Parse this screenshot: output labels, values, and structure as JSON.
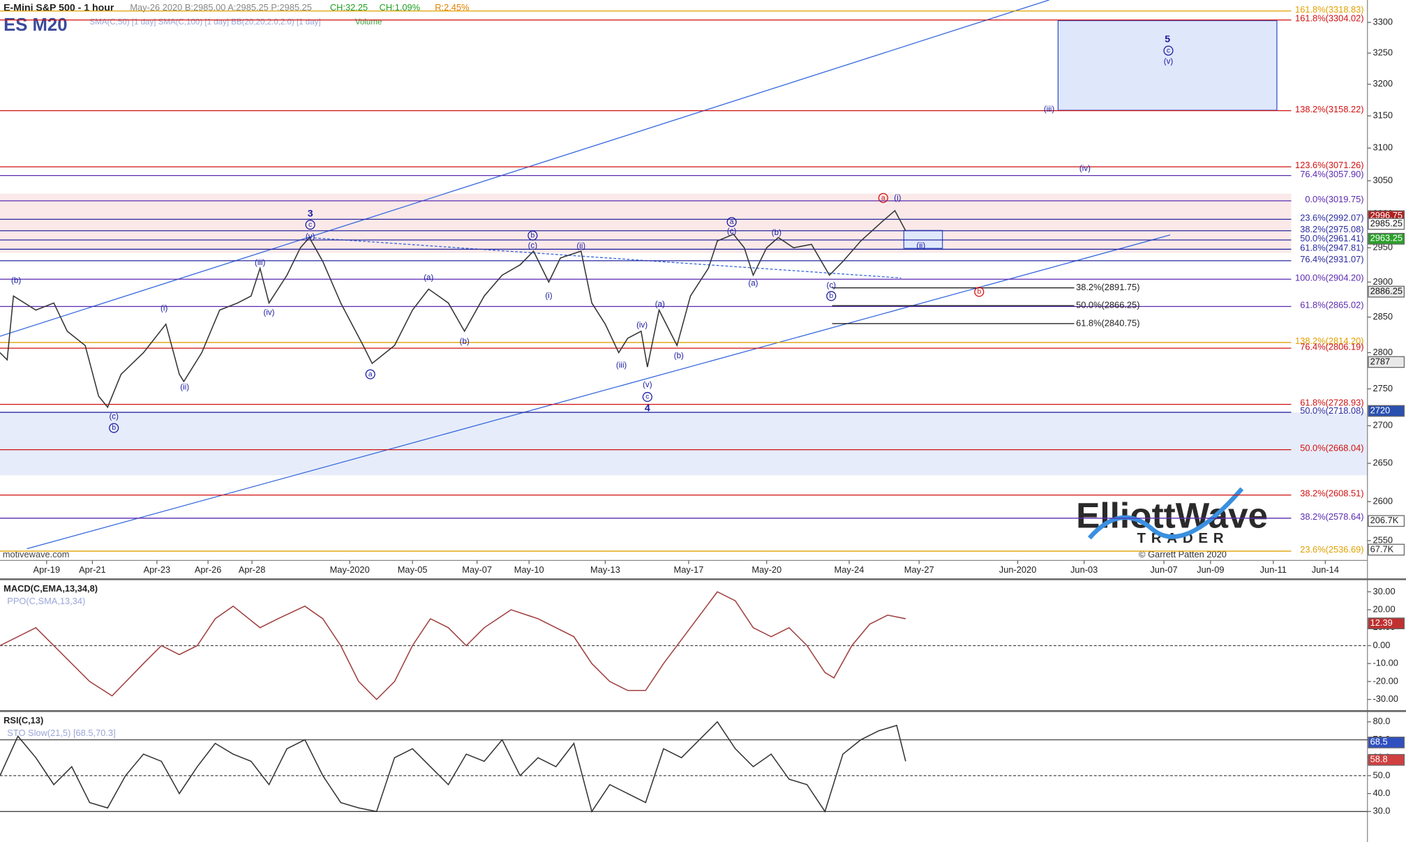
{
  "header": {
    "title": "E-Mini S&P 500 - 1 hour",
    "quote": "May-26 2020 B:2985.00 A:2985.25 P:2985.25",
    "change": "CH:32.25",
    "change_pct": "CH:1.09%",
    "range": "R:2.45%",
    "symbol": "ES M20",
    "indicators": "SMA(C,50) [1 day] SMA(C,100) [1 day] BB(20,20,2.0,2.0) [1 day]",
    "volume_label": "Volume"
  },
  "footer": {
    "site": "motivewave.com",
    "copyright": "© Garrett Patten 2020",
    "logo_main": "ElliottWave",
    "logo_sub": "TRADER"
  },
  "volume_tags": [
    {
      "value": 206700,
      "label": "206.7K"
    },
    {
      "value": 67700,
      "label": "67.7K"
    }
  ],
  "chart_data": [
    {
      "type": "line",
      "log_scale": true,
      "x": [
        0,
        8,
        15,
        40,
        60,
        75,
        95,
        110,
        120,
        135,
        160,
        185,
        200,
        205,
        225,
        245,
        265,
        280,
        290,
        300,
        320,
        335,
        345,
        360,
        380,
        405,
        415,
        440,
        460,
        478,
        500,
        518,
        540,
        560,
        580,
        595,
        612,
        625,
        648,
        660,
        675,
        690,
        700,
        715,
        722,
        735,
        755,
        770,
        790,
        800,
        818,
        830,
        840,
        855,
        868,
        885,
        905,
        925,
        940,
        960,
        985,
        998,
        1010
      ],
      "series": [
        {
          "color": "#333333",
          "values": [
            2800,
            2790,
            2880,
            2860,
            2870,
            2830,
            2810,
            2740,
            2725,
            2770,
            2800,
            2840,
            2770,
            2760,
            2800,
            2860,
            2870,
            2880,
            2920,
            2870,
            2910,
            2950,
            2965,
            2930,
            2870,
            2810,
            2785,
            2810,
            2860,
            2890,
            2870,
            2830,
            2880,
            2910,
            2925,
            2945,
            2900,
            2935,
            2945,
            2870,
            2840,
            2800,
            2820,
            2830,
            2780,
            2860,
            2810,
            2880,
            2920,
            2960,
            2970,
            2950,
            2910,
            2950,
            2965,
            2950,
            2955,
            2910,
            2930,
            2960,
            2990,
            3005,
            2975
          ]
        }
      ],
      "xlim": [
        0,
        1525
      ],
      "ylim": [
        2525,
        3337
      ],
      "xticks": [
        {
          "value": 52,
          "label": "Apr-19"
        },
        {
          "value": 103,
          "label": "Apr-21"
        },
        {
          "value": 175,
          "label": "Apr-23"
        },
        {
          "value": 232,
          "label": "Apr-26"
        },
        {
          "value": 281,
          "label": "Apr-28"
        },
        {
          "value": 390,
          "label": "May-2020"
        },
        {
          "value": 460,
          "label": "May-05"
        },
        {
          "value": 532,
          "label": "May-07"
        },
        {
          "value": 590,
          "label": "May-10"
        },
        {
          "value": 675,
          "label": "May-13"
        },
        {
          "value": 768,
          "label": "May-17"
        },
        {
          "value": 855,
          "label": "May-20"
        },
        {
          "value": 947,
          "label": "May-24"
        },
        {
          "value": 1025,
          "label": "May-27"
        },
        {
          "value": 1135,
          "label": "Jun-2020"
        },
        {
          "value": 1209,
          "label": "Jun-03"
        },
        {
          "value": 1298,
          "label": "Jun-07"
        },
        {
          "value": 1350,
          "label": "Jun-09"
        },
        {
          "value": 1420,
          "label": "Jun-11"
        },
        {
          "value": 1478,
          "label": "Jun-14"
        }
      ],
      "yticks": [
        2550,
        2600,
        2650,
        2700,
        2750,
        2800,
        2850,
        2900,
        2950,
        3000,
        3050,
        3100,
        3150,
        3200,
        3250,
        3300
      ],
      "levels": [
        {
          "label": "161.8%(3318.83)",
          "value": 3318.83,
          "color": "#e0a000"
        },
        {
          "label": "161.8%(3304.02)",
          "value": 3304.02,
          "color": "#d01010"
        },
        {
          "label": "138.2%(3158.22)",
          "value": 3158.22,
          "color": "#d01010"
        },
        {
          "label": "123.6%(3071.26)",
          "value": 3071.26,
          "color": "#d01010"
        },
        {
          "label": "76.4%(3057.90)",
          "value": 3057.9,
          "color": "#5a2ab0"
        },
        {
          "label": "0.0%(3019.75)",
          "value": 3019.75,
          "color": "#5a2ab0"
        },
        {
          "label": "23.6%(2992.07)",
          "value": 2992.07,
          "color": "#2a2aa0"
        },
        {
          "label": "38.2%(2975.08)",
          "value": 2975.08,
          "color": "#2a2aa0"
        },
        {
          "label": "50.0%(2961.41)",
          "value": 2961.41,
          "color": "#2a2aa0"
        },
        {
          "label": "61.8%(2947.81)",
          "value": 2947.81,
          "color": "#2a2aa0"
        },
        {
          "label": "76.4%(2931.07)",
          "value": 2931.07,
          "color": "#2a2aa0"
        },
        {
          "label": "100.0%(2904.20)",
          "value": 2904.2,
          "color": "#5a2ab0"
        },
        {
          "label": "61.8%(2865.02)",
          "value": 2865.02,
          "color": "#5a2ab0"
        },
        {
          "label": "138.2%(2814.20)",
          "value": 2814.2,
          "color": "#e0a000"
        },
        {
          "label": "76.4%(2806.19)",
          "value": 2806.19,
          "color": "#d01010"
        },
        {
          "label": "61.8%(2728.93)",
          "value": 2728.93,
          "color": "#d01010"
        },
        {
          "label": "50.0%(2718.08)",
          "value": 2718.08,
          "color": "#2a2aa0"
        },
        {
          "label": "50.0%(2668.04)",
          "value": 2668.04,
          "color": "#d01010"
        },
        {
          "label": "38.2%(2608.51)",
          "value": 2608.51,
          "color": "#d01010"
        },
        {
          "label": "38.2%(2578.64)",
          "value": 2578.64,
          "color": "#5a2ab0"
        },
        {
          "label": "23.6%(2536.69)",
          "value": 2536.69,
          "color": "#e0a000"
        }
      ],
      "projections": [
        {
          "label": "38.2%(2891.75)",
          "value": 2891.75
        },
        {
          "label": "50.0%(2866.25)",
          "value": 2866.25
        },
        {
          "label": "61.8%(2840.75)",
          "value": 2840.75
        }
      ],
      "price_tags": [
        {
          "value": 2996.75,
          "color": "#b02020"
        },
        {
          "value": 2985.25,
          "color": "#ffffff"
        },
        {
          "value": 2963.25,
          "color": "#2aa02a"
        },
        {
          "value": 2886.25,
          "color": "#e8e8e8"
        },
        {
          "value": 2787.0,
          "color": "#e8e8e8"
        },
        {
          "value": 2720.0,
          "color": "#2a50b0"
        }
      ],
      "annotations": [
        {
          "label": "(b)",
          "x": 18,
          "value": 2902,
          "color": "#1a1aa0"
        },
        {
          "label": "(c)",
          "x": 127,
          "value": 2712,
          "color": "#1a1aa0"
        },
        {
          "label": "b",
          "x": 127,
          "value": 2697,
          "color": "#1a1aa0",
          "circled": true
        },
        {
          "label": "(i)",
          "x": 183,
          "value": 2862,
          "color": "#1a1aa0"
        },
        {
          "label": "(ii)",
          "x": 206,
          "value": 2752,
          "color": "#1a1aa0"
        },
        {
          "label": "(iii)",
          "x": 290,
          "value": 2928,
          "color": "#1a1aa0"
        },
        {
          "label": "(iv)",
          "x": 300,
          "value": 2856,
          "color": "#1a1aa0"
        },
        {
          "label": "3",
          "x": 346,
          "value": 3000,
          "color": "#1a1aa0",
          "bold": true
        },
        {
          "label": "c",
          "x": 346,
          "value": 2984,
          "color": "#1a1aa0",
          "circled": true
        },
        {
          "label": "(v)",
          "x": 346,
          "value": 2966,
          "color": "#1a1aa0"
        },
        {
          "label": "a",
          "x": 413,
          "value": 2770,
          "color": "#1a1aa0",
          "circled": true
        },
        {
          "label": "(a)",
          "x": 478,
          "value": 2906,
          "color": "#1a1aa0"
        },
        {
          "label": "(b)",
          "x": 518,
          "value": 2815,
          "color": "#1a1aa0"
        },
        {
          "label": "b",
          "x": 594,
          "value": 2968,
          "color": "#1a1aa0",
          "circled": true
        },
        {
          "label": "(c)",
          "x": 594,
          "value": 2953,
          "color": "#1a1aa0"
        },
        {
          "label": "(ii)",
          "x": 648,
          "value": 2952,
          "color": "#1a1aa0"
        },
        {
          "label": "(i)",
          "x": 612,
          "value": 2880,
          "color": "#1a1aa0"
        },
        {
          "label": "(iii)",
          "x": 693,
          "value": 2782,
          "color": "#1a1aa0"
        },
        {
          "label": "(iv)",
          "x": 716,
          "value": 2838,
          "color": "#1a1aa0"
        },
        {
          "label": "(a)",
          "x": 736,
          "value": 2868,
          "color": "#1a1aa0"
        },
        {
          "label": "(b)",
          "x": 757,
          "value": 2795,
          "color": "#1a1aa0"
        },
        {
          "label": "(v)",
          "x": 722,
          "value": 2755,
          "color": "#1a1aa0"
        },
        {
          "label": "c",
          "x": 722,
          "value": 2739,
          "color": "#1a1aa0",
          "circled": true
        },
        {
          "label": "4",
          "x": 722,
          "value": 2723,
          "color": "#1a1aa0",
          "bold": true
        },
        {
          "label": "a",
          "x": 816,
          "value": 2988,
          "color": "#1a1aa0",
          "circled": true
        },
        {
          "label": "(c)",
          "x": 816,
          "value": 2974,
          "color": "#1a1aa0"
        },
        {
          "label": "(b)",
          "x": 866,
          "value": 2972,
          "color": "#1a1aa0"
        },
        {
          "label": "(a)",
          "x": 840,
          "value": 2898,
          "color": "#1a1aa0"
        },
        {
          "label": "(c)",
          "x": 927,
          "value": 2895,
          "color": "#1a1aa0"
        },
        {
          "label": "b",
          "x": 927,
          "value": 2880,
          "color": "#1a1aa0",
          "circled": true
        },
        {
          "label": "a",
          "x": 985,
          "value": 3024,
          "color": "#d01010",
          "circled": true
        },
        {
          "label": "(i)",
          "x": 1001,
          "value": 3024,
          "color": "#1a1aa0"
        },
        {
          "label": "(ii)",
          "x": 1027,
          "value": 2953,
          "color": "#1a1aa0"
        },
        {
          "label": "b",
          "x": 1092,
          "value": 2886,
          "color": "#d01010",
          "circled": true
        },
        {
          "label": "(iv)",
          "x": 1210,
          "value": 3068,
          "color": "#1a1aa0"
        },
        {
          "label": "(iii)",
          "x": 1170,
          "value": 3160,
          "color": "#1a1aa0"
        },
        {
          "label": "5",
          "x": 1302,
          "value": 3272,
          "color": "#1a1aa0",
          "bold": true
        },
        {
          "label": "c",
          "x": 1303,
          "value": 3254,
          "color": "#1a1aa0",
          "circled": true
        },
        {
          "label": "(v)",
          "x": 1303,
          "value": 3236,
          "color": "#1a1aa0"
        }
      ]
    },
    {
      "type": "line",
      "title": "MACD(C,EMA,13,34,8)",
      "subtitle": "PPO(C,SMA,13,34)",
      "x": [
        0,
        40,
        100,
        125,
        160,
        180,
        200,
        220,
        240,
        260,
        290,
        310,
        340,
        360,
        380,
        400,
        420,
        440,
        460,
        480,
        500,
        520,
        540,
        570,
        600,
        640,
        660,
        680,
        700,
        720,
        740,
        770,
        800,
        820,
        840,
        860,
        880,
        900,
        920,
        930,
        950,
        970,
        990,
        1010
      ],
      "series": [
        {
          "color": "#a04040",
          "values": [
            0,
            10,
            -20,
            -28,
            -10,
            0,
            -5,
            0,
            15,
            22,
            10,
            15,
            22,
            15,
            0,
            -20,
            -30,
            -20,
            0,
            15,
            10,
            0,
            10,
            20,
            15,
            5,
            -10,
            -20,
            -25,
            -25,
            -10,
            10,
            30,
            25,
            10,
            5,
            10,
            0,
            -15,
            -18,
            0,
            12,
            17,
            15
          ]
        }
      ],
      "xlim": [
        0,
        1525
      ],
      "ylim": [
        -36,
        36
      ],
      "yticks": [
        {
          "value": 30,
          "label": "30.00"
        },
        {
          "value": 20,
          "label": "20.00"
        },
        {
          "value": 10,
          "label": "10.00"
        },
        {
          "value": 0,
          "label": "0.00"
        },
        {
          "value": -10,
          "label": "-10.00"
        },
        {
          "value": -20,
          "label": "-20.00"
        },
        {
          "value": -30,
          "label": "-30.00"
        }
      ],
      "hlines": [
        0
      ],
      "price_tags": [
        {
          "value": 12.39,
          "color": "#c03030"
        }
      ]
    },
    {
      "type": "line",
      "title": "RSI(C,13)",
      "subtitle": "STO Slow(21,5) [68.5,70.3]",
      "x": [
        0,
        20,
        40,
        60,
        80,
        100,
        120,
        140,
        160,
        180,
        200,
        220,
        240,
        260,
        280,
        300,
        320,
        340,
        360,
        380,
        400,
        420,
        440,
        460,
        480,
        500,
        520,
        540,
        560,
        580,
        600,
        620,
        640,
        660,
        680,
        700,
        720,
        740,
        760,
        780,
        800,
        820,
        840,
        860,
        880,
        900,
        920,
        940,
        960,
        980,
        1000,
        1010
      ],
      "series": [
        {
          "color": "#333333",
          "values": [
            50,
            72,
            60,
            45,
            55,
            35,
            32,
            50,
            62,
            58,
            40,
            55,
            68,
            62,
            58,
            45,
            65,
            70,
            50,
            35,
            32,
            30,
            60,
            65,
            55,
            45,
            62,
            58,
            70,
            50,
            60,
            55,
            68,
            30,
            45,
            40,
            35,
            65,
            60,
            70,
            80,
            65,
            55,
            62,
            48,
            45,
            30,
            62,
            70,
            75,
            78,
            58
          ]
        }
      ],
      "xlim": [
        0,
        1525
      ],
      "ylim": [
        15,
        85
      ],
      "yticks": [
        {
          "value": 80,
          "label": "80.0"
        },
        {
          "value": 70,
          "label": "70.0"
        },
        {
          "value": 60,
          "label": "60.0"
        },
        {
          "value": 50,
          "label": "50.0"
        },
        {
          "value": 40,
          "label": "40.0"
        },
        {
          "value": 30,
          "label": "30.0"
        }
      ],
      "hlines": [
        70,
        50,
        30
      ],
      "price_tags": [
        {
          "value": 68.5,
          "color": "#3050c0"
        },
        {
          "value": 58.8,
          "color": "#d04040"
        }
      ]
    }
  ]
}
